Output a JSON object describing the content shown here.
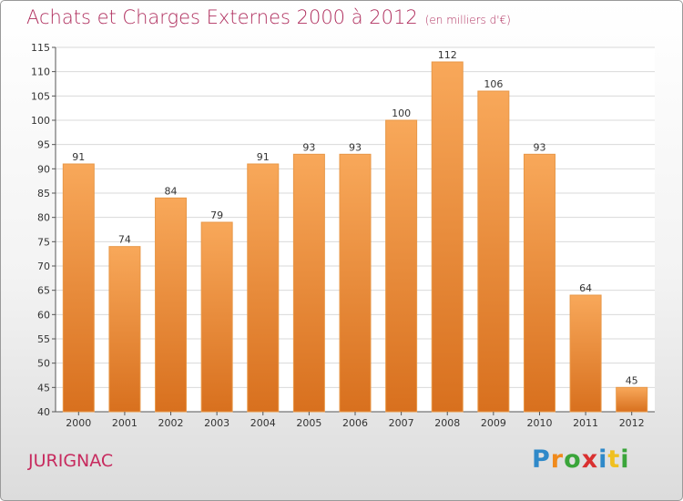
{
  "chart_data": {
    "type": "bar",
    "title": "Achats et Charges Externes 2000 à 2012",
    "subtitle": "(en milliers d'€)",
    "categories": [
      "2000",
      "2001",
      "2002",
      "2003",
      "2004",
      "2005",
      "2006",
      "2007",
      "2008",
      "2009",
      "2010",
      "2011",
      "2012"
    ],
    "values": [
      91,
      74,
      84,
      79,
      91,
      93,
      93,
      100,
      112,
      106,
      93,
      64,
      45
    ],
    "ylim": [
      40,
      115
    ],
    "yticks": [
      40,
      45,
      50,
      55,
      60,
      65,
      70,
      75,
      80,
      85,
      90,
      95,
      100,
      105,
      110,
      115
    ],
    "grid": true,
    "bar_color_top": "#f8a85a",
    "bar_color_bottom": "#d8701e"
  },
  "footer": {
    "commune": "JURIGNAC",
    "logo_letters": [
      "P",
      "r",
      "o",
      "x",
      "i",
      "t",
      "i"
    ],
    "logo_colors": [
      "#2f89c9",
      "#f08a1c",
      "#3aa53a",
      "#d93030",
      "#2f89c9",
      "#f0c020",
      "#3aa53a"
    ]
  }
}
